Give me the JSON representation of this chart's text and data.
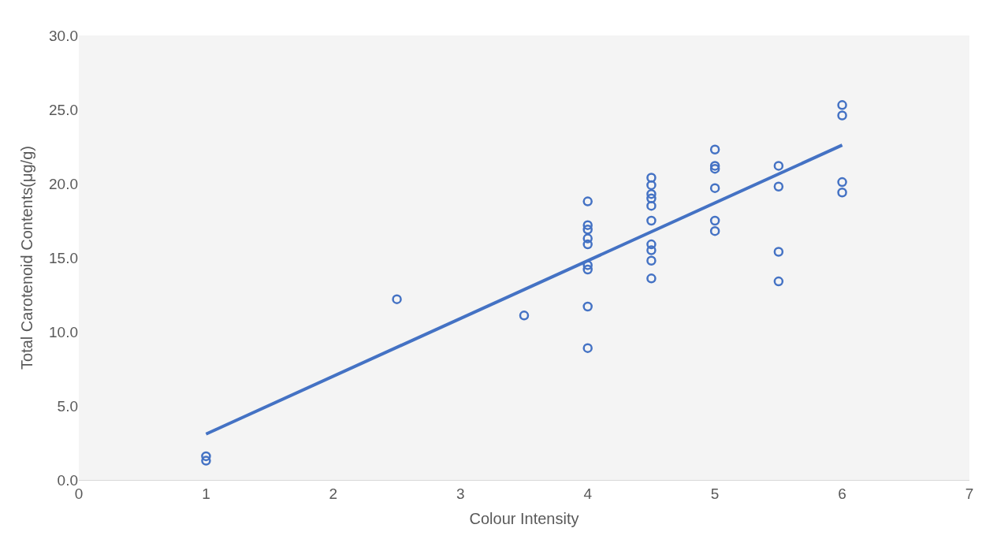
{
  "chart_data": {
    "type": "scatter",
    "xlabel": "Colour Intensity",
    "ylabel": "Total Carotenoid Contents(μg/g)",
    "xlim": [
      0,
      7
    ],
    "xticks": [
      0,
      1,
      2,
      3,
      4,
      5,
      6,
      7
    ],
    "ylim": [
      0,
      30
    ],
    "yticks": [
      {
        "value": 0,
        "label": "0.0"
      },
      {
        "value": 5,
        "label": "5.0"
      },
      {
        "value": 10,
        "label": "10.0"
      },
      {
        "value": 15,
        "label": "15.0"
      },
      {
        "value": 20,
        "label": "20.0"
      },
      {
        "value": 25,
        "label": "25.0"
      },
      {
        "value": 30,
        "label": "30.0"
      }
    ],
    "grid": false,
    "legend": false,
    "marker": "circle",
    "series": [
      {
        "color": "#4472c4",
        "x": [
          1,
          1,
          2.5,
          3.5,
          4,
          4,
          4,
          4,
          4,
          4,
          4,
          4,
          4,
          4.5,
          4.5,
          4.5,
          4.5,
          4.5,
          4.5,
          4.5,
          4.5,
          4.5,
          4.5,
          5,
          5,
          5,
          5,
          5,
          5,
          5.5,
          5.5,
          5.5,
          5.5,
          6,
          6,
          6,
          6
        ],
        "values": [
          1.6,
          1.3,
          12.2,
          11.1,
          18.8,
          17.2,
          16.9,
          16.3,
          15.9,
          14.5,
          14.2,
          11.7,
          8.9,
          20.4,
          19.9,
          19.3,
          19.0,
          18.5,
          17.5,
          15.9,
          15.5,
          14.8,
          13.6,
          22.3,
          21.2,
          21.0,
          19.7,
          17.5,
          16.8,
          21.2,
          19.8,
          15.4,
          13.4,
          25.3,
          24.6,
          20.1,
          19.4
        ]
      },
      {
        "type": "line",
        "color": "#4472c4",
        "x": [
          1,
          6
        ],
        "values": [
          3.1,
          22.6
        ],
        "line_style": "solid",
        "marker": "none"
      }
    ]
  }
}
